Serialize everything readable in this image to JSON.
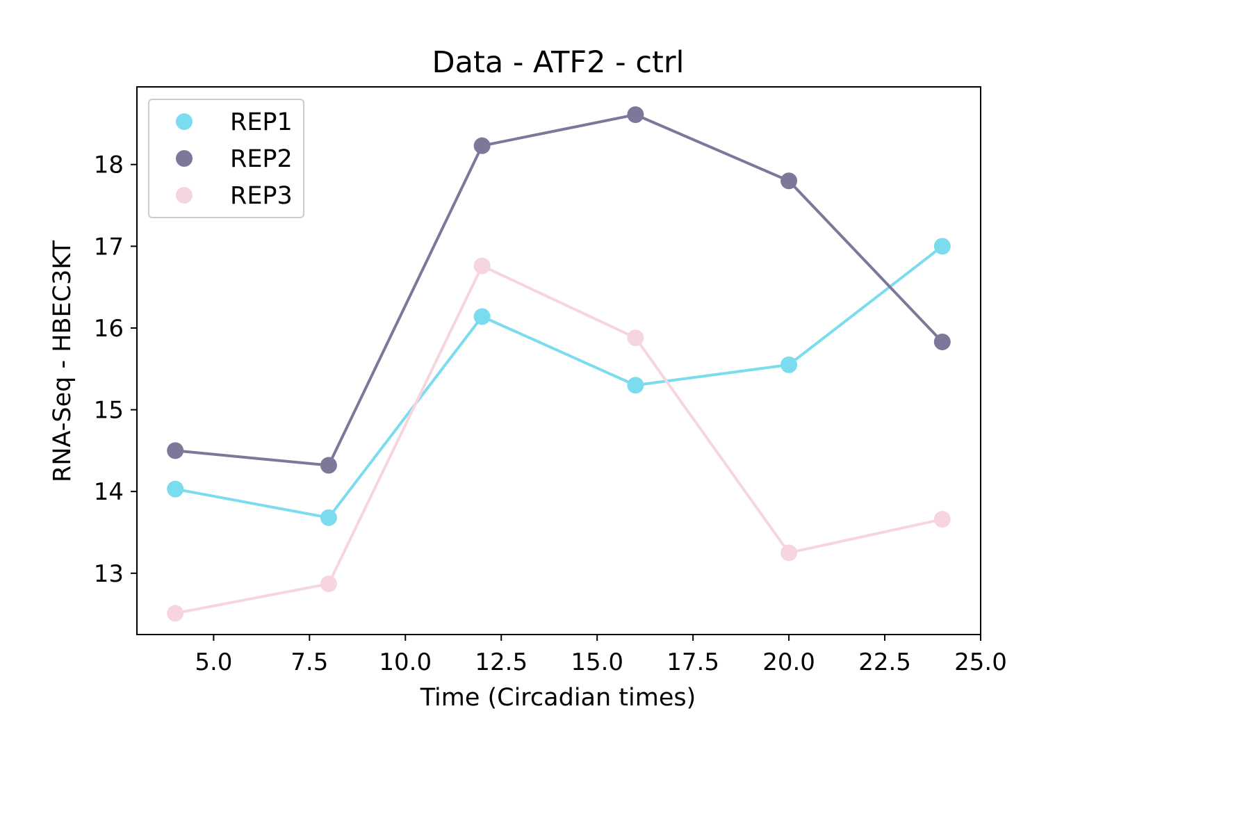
{
  "chart_data": {
    "type": "line",
    "title": "Data - ATF2 - ctrl",
    "xlabel": "Time (Circadian times)",
    "ylabel": "RNA-Seq - HBEC3KT",
    "xlim": [
      3.0,
      25.0
    ],
    "ylim": [
      12.25,
      18.95
    ],
    "xticks": [
      5.0,
      7.5,
      10.0,
      12.5,
      15.0,
      17.5,
      20.0,
      22.5,
      25.0
    ],
    "xtick_labels": [
      "5.0",
      "7.5",
      "10.0",
      "12.5",
      "15.0",
      "17.5",
      "20.0",
      "22.5",
      "25.0"
    ],
    "yticks": [
      13,
      14,
      15,
      16,
      17,
      18
    ],
    "ytick_labels": [
      "13",
      "14",
      "15",
      "16",
      "17",
      "18"
    ],
    "grid": false,
    "legend_position": "top-left",
    "x": [
      4,
      8,
      12,
      16,
      20,
      24
    ],
    "series": [
      {
        "name": "REP1",
        "color": "#7adcee",
        "values": [
          14.03,
          13.68,
          16.14,
          15.3,
          15.55,
          17.0
        ]
      },
      {
        "name": "REP2",
        "color": "#7b7899",
        "values": [
          14.5,
          14.32,
          18.23,
          18.61,
          17.8,
          15.83
        ]
      },
      {
        "name": "REP3",
        "color": "#f7d5df",
        "values": [
          12.51,
          12.87,
          16.76,
          15.88,
          13.25,
          13.66
        ]
      }
    ]
  }
}
